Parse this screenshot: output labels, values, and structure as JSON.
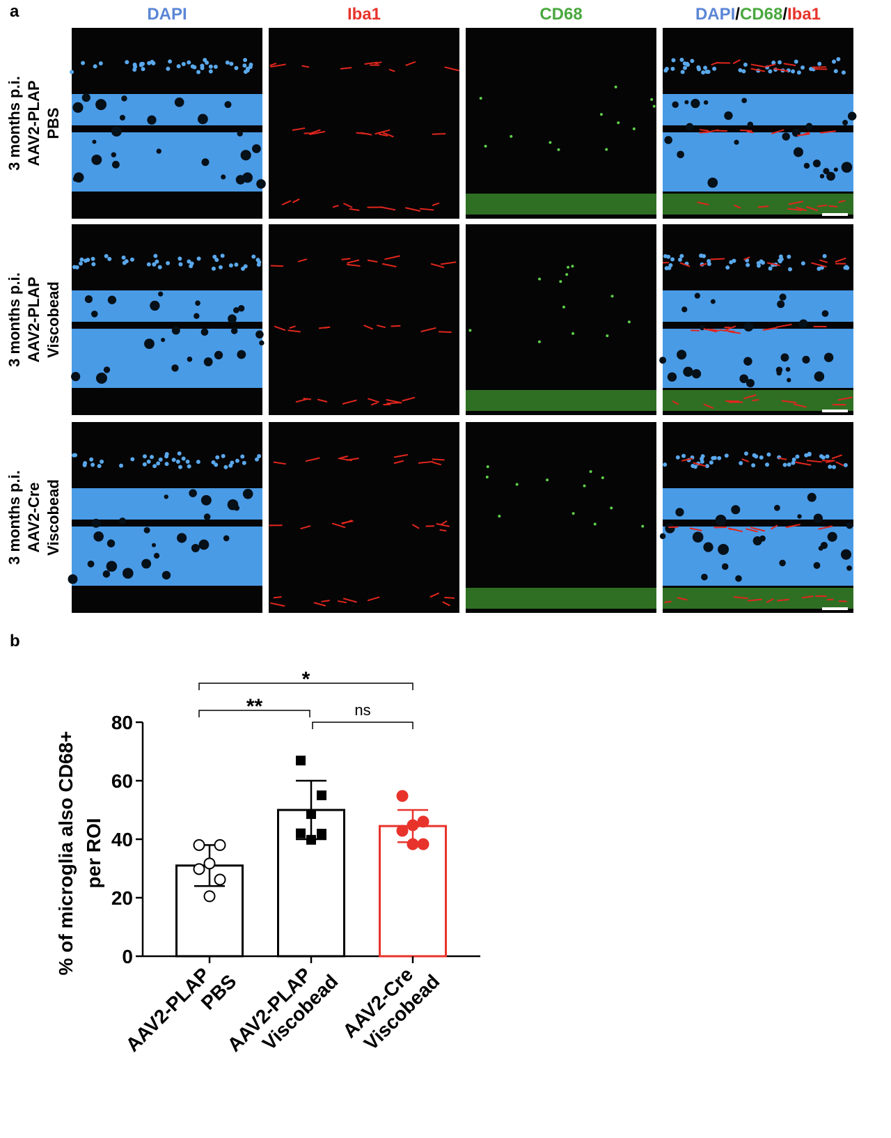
{
  "panel_a": {
    "letter": "a",
    "columns": [
      "DAPI",
      "Iba1",
      "CD68",
      [
        "DAPI",
        "/",
        "CD68",
        "/",
        "Iba1"
      ]
    ],
    "rows": [
      [
        "3 months p.i.",
        "AAV2-PLAP",
        "PBS"
      ],
      [
        "3 months p.i.",
        "AAV2-PLAP",
        "Viscobead"
      ],
      [
        "3 months p.i.",
        "AAV2-Cre",
        "Viscobead"
      ]
    ]
  },
  "chart_data": {
    "type": "bar",
    "letter": "b",
    "ylabel": [
      "% of microglia also CD68+",
      "per ROI"
    ],
    "categories": [
      [
        "AAV2-PLAP",
        "PBS"
      ],
      [
        "AAV2-PLAP",
        "Viscobead"
      ],
      [
        "AAV2-Cre",
        "Viscobead"
      ]
    ],
    "values": [
      31,
      50,
      44.5
    ],
    "errors": [
      7,
      10,
      5.5
    ],
    "points": [
      [
        38,
        38,
        31.7,
        29.8,
        26.2,
        20.5
      ],
      [
        66.9,
        55,
        48.6,
        42,
        41.9,
        39.8
      ],
      [
        54.8,
        46,
        44.8,
        42.9,
        38.3,
        38.3
      ]
    ],
    "colors": [
      "#000000",
      "#000000",
      "#e8332b"
    ],
    "markers": [
      "open-circle",
      "filled-square",
      "filled-circle"
    ],
    "ylim": [
      0,
      80
    ],
    "yticks": [
      0,
      20,
      40,
      60,
      80
    ],
    "significance": [
      {
        "pair": [
          0,
          2
        ],
        "label": "*"
      },
      {
        "pair": [
          0,
          1
        ],
        "label": "**"
      },
      {
        "pair": [
          1,
          2
        ],
        "label": "ns"
      }
    ]
  }
}
